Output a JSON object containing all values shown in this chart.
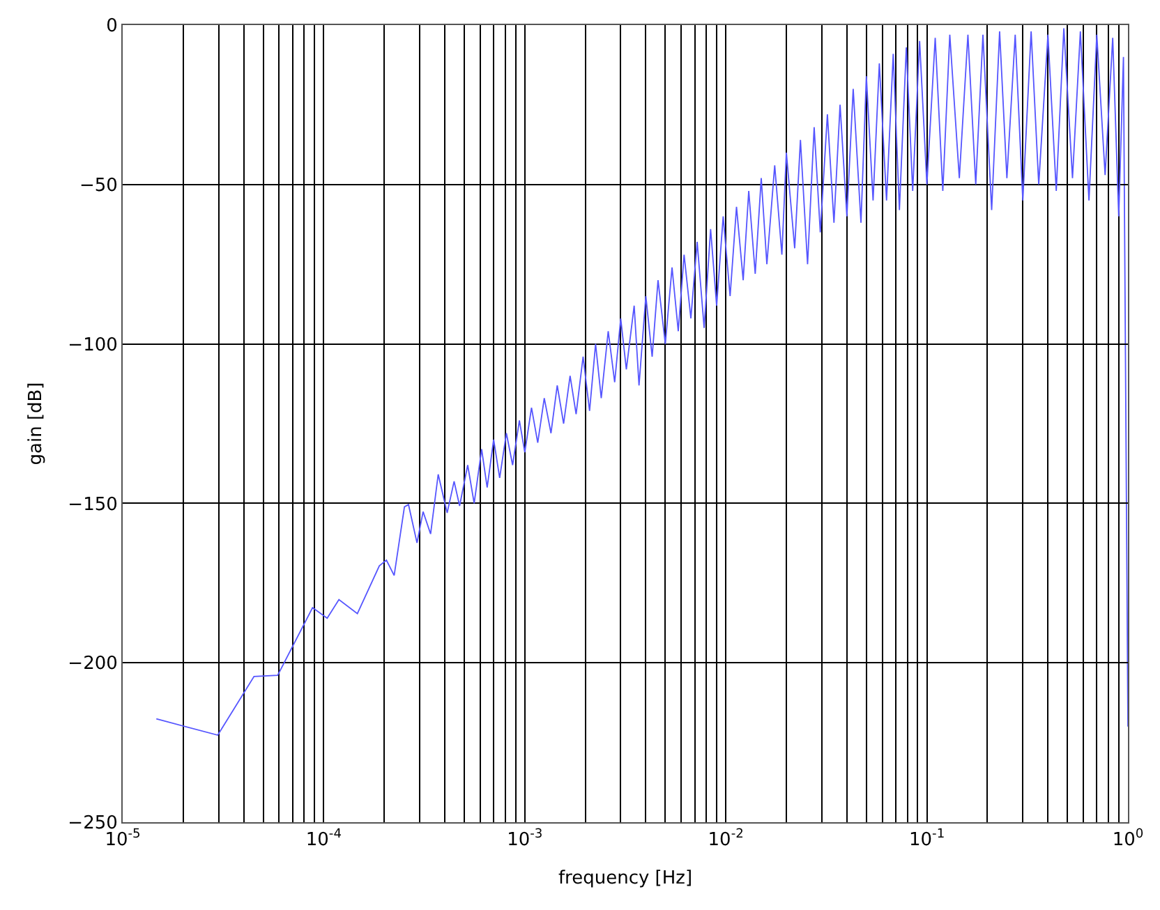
{
  "chart_data": {
    "type": "line",
    "xlabel": "frequency [Hz]",
    "ylabel": "gain [dB]",
    "log": "x",
    "grid": true,
    "marker": "none",
    "line_style": "solid",
    "xlim": [
      1e-05,
      1
    ],
    "ylim": [
      -250,
      0
    ],
    "xticks": [
      {
        "value": 1e-05,
        "label": "10$^{-5}$"
      },
      {
        "value": 2e-05,
        "label": null
      },
      {
        "value": 3e-05,
        "label": null
      },
      {
        "value": 4e-05,
        "label": null
      },
      {
        "value": 5e-05,
        "label": null
      },
      {
        "value": 6e-05,
        "label": null
      },
      {
        "value": 7e-05,
        "label": null
      },
      {
        "value": 8e-05,
        "label": null
      },
      {
        "value": 9e-05,
        "label": null
      },
      {
        "value": 0.0001,
        "label": "10$^{-4}$"
      },
      {
        "value": 0.0002,
        "label": null
      },
      {
        "value": 0.0003,
        "label": null
      },
      {
        "value": 0.0004,
        "label": null
      },
      {
        "value": 0.0005,
        "label": null
      },
      {
        "value": 0.0006,
        "label": null
      },
      {
        "value": 0.0007,
        "label": null
      },
      {
        "value": 0.0008,
        "label": null
      },
      {
        "value": 0.0009,
        "label": null
      },
      {
        "value": 0.001,
        "label": "10$^{-3}$"
      },
      {
        "value": 0.002,
        "label": null
      },
      {
        "value": 0.003,
        "label": null
      },
      {
        "value": 0.004,
        "label": null
      },
      {
        "value": 0.005,
        "label": null
      },
      {
        "value": 0.006,
        "label": null
      },
      {
        "value": 0.007,
        "label": null
      },
      {
        "value": 0.008,
        "label": null
      },
      {
        "value": 0.009,
        "label": null
      },
      {
        "value": 0.01,
        "label": "10$^{-2}$"
      },
      {
        "value": 0.02,
        "label": null
      },
      {
        "value": 0.03,
        "label": null
      },
      {
        "value": 0.04,
        "label": null
      },
      {
        "value": 0.05,
        "label": null
      },
      {
        "value": 0.06,
        "label": null
      },
      {
        "value": 0.07,
        "label": null
      },
      {
        "value": 0.08,
        "label": null
      },
      {
        "value": 0.09,
        "label": null
      },
      {
        "value": 0.1,
        "label": "10$^{-1}$"
      },
      {
        "value": 0.2,
        "label": null
      },
      {
        "value": 0.3,
        "label": null
      },
      {
        "value": 0.4,
        "label": null
      },
      {
        "value": 0.5,
        "label": null
      },
      {
        "value": 0.6,
        "label": null
      },
      {
        "value": 0.7,
        "label": null
      },
      {
        "value": 0.8,
        "label": null
      },
      {
        "value": 0.9,
        "label": null
      },
      {
        "value": 1,
        "label": "10$^{0}$"
      }
    ],
    "yticks": [
      -250,
      -200,
      -150,
      -100,
      -50,
      0
    ],
    "series": [
      {
        "color": "#5555ff",
        "x": [
          1.47e-05,
          2.97e-05,
          4.5e-05,
          5.9e-05,
          8.8e-05,
          0.000104,
          0.000119,
          0.000147,
          0.000189,
          0.000205,
          0.000224,
          0.000252,
          0.000264,
          0.000291,
          0.000312,
          0.00034,
          0.000371,
          0.000411,
          0.000445,
          0.000474,
          0.00052,
          0.00056,
          0.00061,
          0.00065,
          0.0007,
          0.00075,
          0.00081,
          0.00087,
          0.00094,
          0.001,
          0.00108,
          0.00116,
          0.00125,
          0.00135,
          0.00145,
          0.00156,
          0.00168,
          0.0018,
          0.00195,
          0.0021,
          0.00225,
          0.0024,
          0.0026,
          0.0028,
          0.003,
          0.0032,
          0.0035,
          0.0037,
          0.004,
          0.0043,
          0.0046,
          0.005,
          0.0054,
          0.0058,
          0.0062,
          0.0067,
          0.0072,
          0.0078,
          0.0084,
          0.009,
          0.0097,
          0.0105,
          0.0113,
          0.0122,
          0.013,
          0.014,
          0.015,
          0.016,
          0.0175,
          0.019,
          0.02,
          0.022,
          0.0235,
          0.0255,
          0.0275,
          0.0295,
          0.032,
          0.0345,
          0.037,
          0.04,
          0.043,
          0.047,
          0.05,
          0.054,
          0.058,
          0.063,
          0.068,
          0.073,
          0.079,
          0.085,
          0.092,
          0.1,
          0.11,
          0.12,
          0.13,
          0.145,
          0.16,
          0.175,
          0.19,
          0.21,
          0.23,
          0.25,
          0.275,
          0.3,
          0.33,
          0.36,
          0.4,
          0.44,
          0.48,
          0.53,
          0.58,
          0.64,
          0.7,
          0.77,
          0.84,
          0.9,
          0.95,
          1
        ],
        "values": [
          -217.6,
          -222.7,
          -204.3,
          -203.9,
          -182.7,
          -186,
          -180.2,
          -184.6,
          -169.6,
          -167.8,
          -172.6,
          -151.1,
          -150.4,
          -162.4,
          -152.6,
          -159.6,
          -140.9,
          -153,
          -143.1,
          -150.8,
          -138,
          -150,
          -133,
          -145,
          -130,
          -142,
          -128,
          -138,
          -124,
          -134,
          -120,
          -131,
          -117,
          -128,
          -113,
          -125,
          -110,
          -122,
          -104,
          -121,
          -100,
          -117,
          -96,
          -112,
          -92,
          -108,
          -88,
          -113,
          -85,
          -104,
          -80,
          -100,
          -76,
          -96,
          -72,
          -92,
          -68,
          -95,
          -64,
          -88,
          -60,
          -85,
          -57,
          -80,
          -52,
          -78,
          -48,
          -75,
          -44,
          -72,
          -40,
          -70,
          -36,
          -75,
          -32,
          -65,
          -28,
          -62,
          -25,
          -60,
          -20,
          -62,
          -16,
          -55,
          -12,
          -55,
          -9,
          -58,
          -7,
          -52,
          -5,
          -50,
          -4,
          -52,
          -3,
          -48,
          -3,
          -50,
          -3,
          -58,
          -2,
          -48,
          -3,
          -55,
          -2,
          -50,
          -3,
          -52,
          -1,
          -48,
          -2,
          -55,
          -3,
          -47,
          -4,
          -60,
          -10,
          -220
        ]
      }
    ]
  }
}
